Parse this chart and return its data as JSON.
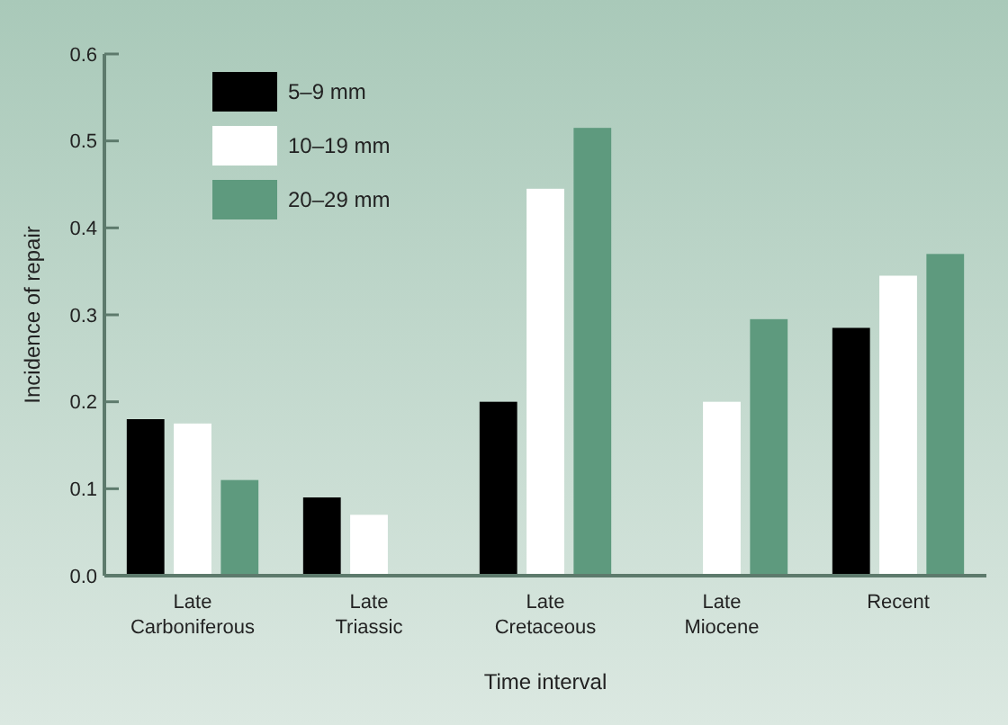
{
  "chart_data": {
    "type": "bar",
    "xlabel": "Time interval",
    "ylabel": "Incidence of repair",
    "categories": [
      "Late Carboniferous",
      "Late Triassic",
      "Late Cretaceous",
      "Late Miocene",
      "Recent"
    ],
    "series": [
      {
        "name": "5–9 mm",
        "color": "#000000",
        "values": [
          0.18,
          0.09,
          0.2,
          null,
          0.285
        ]
      },
      {
        "name": "10–19 mm",
        "color": "#ffffff",
        "values": [
          0.175,
          0.07,
          0.445,
          0.2,
          0.345
        ]
      },
      {
        "name": "20–29 mm",
        "color": "#5e9a7e",
        "values": [
          0.11,
          null,
          0.515,
          0.295,
          0.37
        ]
      }
    ],
    "ylim": [
      0,
      0.6
    ],
    "yticks": [
      {
        "value": 0,
        "label": "0.0"
      },
      0.1,
      0.2,
      0.3,
      0.4,
      0.5,
      0.6
    ],
    "grid": false,
    "legend": "top left"
  }
}
